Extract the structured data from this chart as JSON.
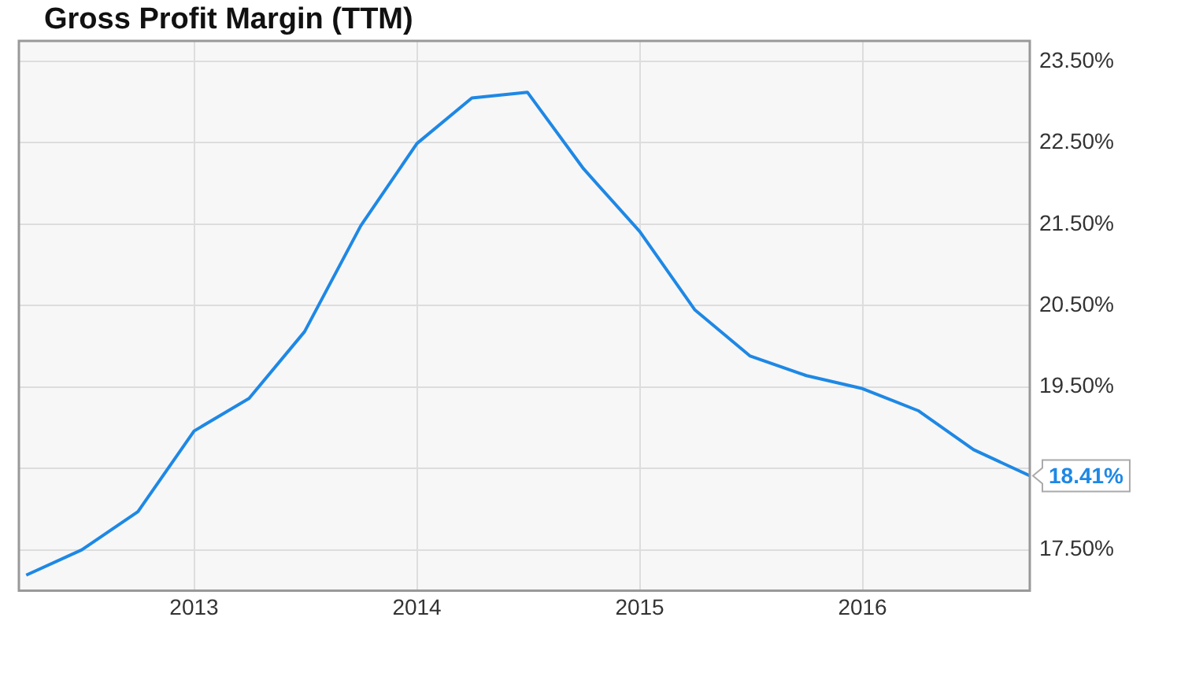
{
  "chart_data": {
    "type": "line",
    "title": "Gross Profit Margin (TTM)",
    "x": [
      "2012-04",
      "2012-07",
      "2012-10",
      "2013-01",
      "2013-04",
      "2013-07",
      "2013-10",
      "2014-01",
      "2014-04",
      "2014-07",
      "2014-10",
      "2015-01",
      "2015-04",
      "2015-07",
      "2015-10",
      "2016-01",
      "2016-04",
      "2016-07",
      "2016-10"
    ],
    "series": [
      {
        "color": "#1e88e5",
        "values": [
          17.19,
          17.5,
          17.97,
          18.96,
          19.36,
          20.18,
          21.48,
          22.49,
          23.05,
          23.12,
          22.18,
          21.41,
          20.45,
          19.88,
          19.64,
          19.48,
          19.21,
          18.73,
          18.41
        ],
        "value_labels": [
          null,
          null,
          null,
          null,
          null,
          null,
          null,
          null,
          null,
          null,
          null,
          null,
          null,
          null,
          null,
          null,
          null,
          null,
          "18.41%"
        ]
      }
    ],
    "xlim": [
      "2012-03-20",
      "2016-10-01"
    ],
    "xticks": [
      "2013",
      "2014",
      "2015",
      "2016"
    ],
    "ylim": [
      17,
      23.75
    ],
    "yticks": [
      {
        "value": 17.5,
        "label": "17.50%"
      },
      {
        "value": 18.5,
        "label": null
      },
      {
        "value": 19.5,
        "label": "19.50%"
      },
      {
        "value": 20.5,
        "label": "20.50%"
      },
      {
        "value": 21.5,
        "label": "21.50%"
      },
      {
        "value": 22.5,
        "label": "22.50%"
      },
      {
        "value": 23.5,
        "label": "23.50%"
      }
    ],
    "grid": true,
    "legend": false,
    "marker": "none",
    "line_style": "solid"
  }
}
